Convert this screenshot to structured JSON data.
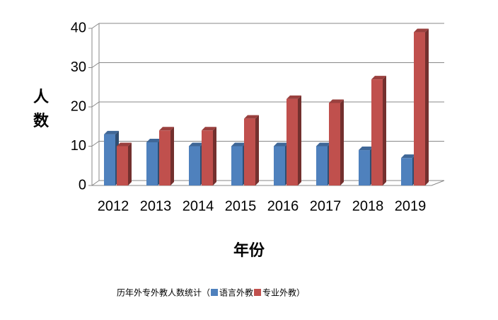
{
  "chart_data": {
    "type": "bar3d",
    "y_axis_label": "人数",
    "x_axis_label": "年份",
    "caption_open": "历年外专外教人数统计（",
    "caption_close": "）",
    "categories": [
      "2012",
      "2013",
      "2014",
      "2015",
      "2016",
      "2017",
      "2018",
      "2019"
    ],
    "series": [
      {
        "name": "语言外教",
        "color": "#4f81bd",
        "values": [
          13,
          11,
          10,
          10,
          10,
          10,
          9,
          7
        ]
      },
      {
        "name": "专业外教",
        "color": "#c0504d",
        "values": [
          10,
          14,
          14,
          17,
          22,
          21,
          27,
          39
        ]
      }
    ],
    "ylim": [
      0,
      40
    ],
    "yticks": [
      0,
      10,
      20,
      30,
      40
    ],
    "grid": true
  }
}
